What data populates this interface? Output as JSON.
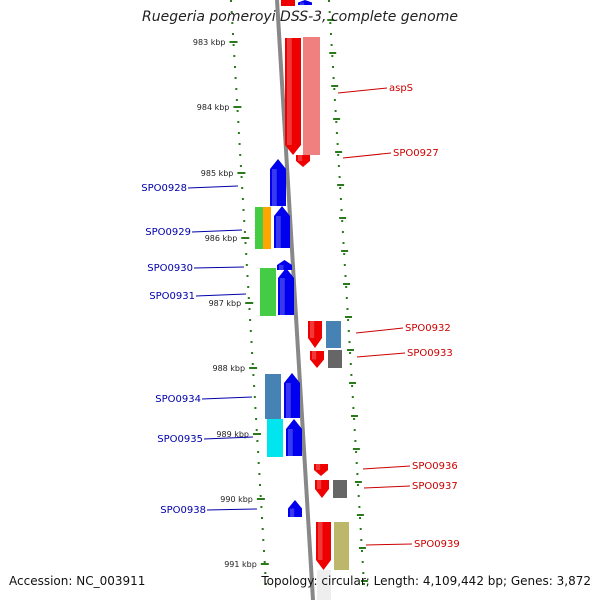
{
  "title": "Ruegeria pomeroyi DSS-3, complete genome",
  "accession": "Accession: NC_003911",
  "summary": "Topology: circular; Length: 4,109,442 bp; Genes: 3,872",
  "colors": {
    "backbone": "#888888",
    "tick": "#2a7a1c",
    "label_forward": "#0000aa",
    "label_reverse": "#cc0000"
  },
  "scale_ticks": [
    "983 kbp",
    "984 kbp",
    "985 kbp",
    "986 kbp",
    "987 kbp",
    "988 kbp",
    "989 kbp",
    "990 kbp",
    "991 kbp"
  ],
  "genes": [
    {
      "label": "",
      "strand": "forward",
      "color": "#0000ee"
    },
    {
      "label": "aspS",
      "strand": "reverse",
      "color": "#ee0000"
    },
    {
      "label": "SPO0927",
      "strand": "reverse",
      "color": "#ee0000"
    },
    {
      "label": "SPO0928",
      "strand": "forward",
      "color": "#0000ee"
    },
    {
      "label": "SPO0929",
      "strand": "forward",
      "color": "#44cc44"
    },
    {
      "label": "SPO0930",
      "strand": "forward",
      "color": "#0000ee"
    },
    {
      "label": "SPO0931",
      "strand": "forward",
      "color": "#44cc44"
    },
    {
      "label": "SPO0932",
      "strand": "reverse",
      "color": "#ee0000"
    },
    {
      "label": "SPO0933",
      "strand": "reverse",
      "color": "#ee0000"
    },
    {
      "label": "SPO0934",
      "strand": "forward",
      "color": "#0000ee"
    },
    {
      "label": "SPO0935",
      "strand": "forward",
      "color": "#0000ee"
    },
    {
      "label": "SPO0936",
      "strand": "reverse",
      "color": "#ee0000"
    },
    {
      "label": "SPO0937",
      "strand": "reverse",
      "color": "#ee0000"
    },
    {
      "label": "SPO0938",
      "strand": "forward",
      "color": "#0000ee"
    },
    {
      "label": "SPO0939",
      "strand": "reverse",
      "color": "#ee0000"
    }
  ]
}
